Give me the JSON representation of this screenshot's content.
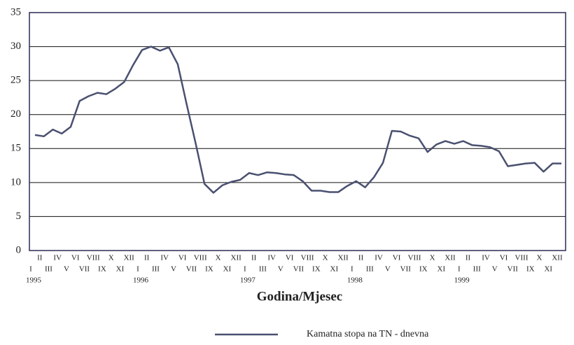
{
  "chart_data": {
    "type": "line",
    "x_label": "Godina/Mjesec",
    "categories": [
      "I",
      "II",
      "III",
      "IV",
      "V",
      "VI",
      "VII",
      "VIII",
      "IX",
      "X",
      "XI",
      "XII",
      "I",
      "II",
      "III",
      "IV",
      "V",
      "VI",
      "VII",
      "VIII",
      "IX",
      "X",
      "XI",
      "XII",
      "I",
      "II",
      "III",
      "IV",
      "V",
      "VI",
      "VII",
      "VIII",
      "IX",
      "X",
      "XI",
      "XII",
      "I",
      "II",
      "III",
      "IV",
      "V",
      "VI",
      "VII",
      "VIII",
      "IX",
      "X",
      "XI",
      "XII",
      "I",
      "II",
      "III",
      "IV",
      "V",
      "VI",
      "VII",
      "VIII",
      "IX",
      "X",
      "XI",
      "XII"
    ],
    "years": [
      "1995",
      "1996",
      "1997",
      "1998",
      "1999"
    ],
    "series": [
      {
        "name": "Kamatna stopa na TN - dnevna",
        "color": "#4a5070",
        "values": [
          17.0,
          16.8,
          17.8,
          17.2,
          18.2,
          22.0,
          22.7,
          23.2,
          23.0,
          23.8,
          24.8,
          27.3,
          29.5,
          30.0,
          29.4,
          29.9,
          27.4,
          21.5,
          15.8,
          9.8,
          8.5,
          9.6,
          10.1,
          10.4,
          11.4,
          11.1,
          11.5,
          11.4,
          11.2,
          11.1,
          10.2,
          8.8,
          8.8,
          8.6,
          8.6,
          9.5,
          10.2,
          9.3,
          10.8,
          12.9,
          17.6,
          17.5,
          16.9,
          16.5,
          14.5,
          15.6,
          16.1,
          15.7,
          16.1,
          15.5,
          15.4,
          15.2,
          14.6,
          12.4,
          12.6,
          12.8,
          12.9,
          11.6,
          12.8,
          12.8
        ]
      }
    ],
    "ylim": [
      0,
      35
    ],
    "yticks": [
      0,
      5,
      10,
      15,
      20,
      25,
      30,
      35
    ],
    "grid": true
  }
}
